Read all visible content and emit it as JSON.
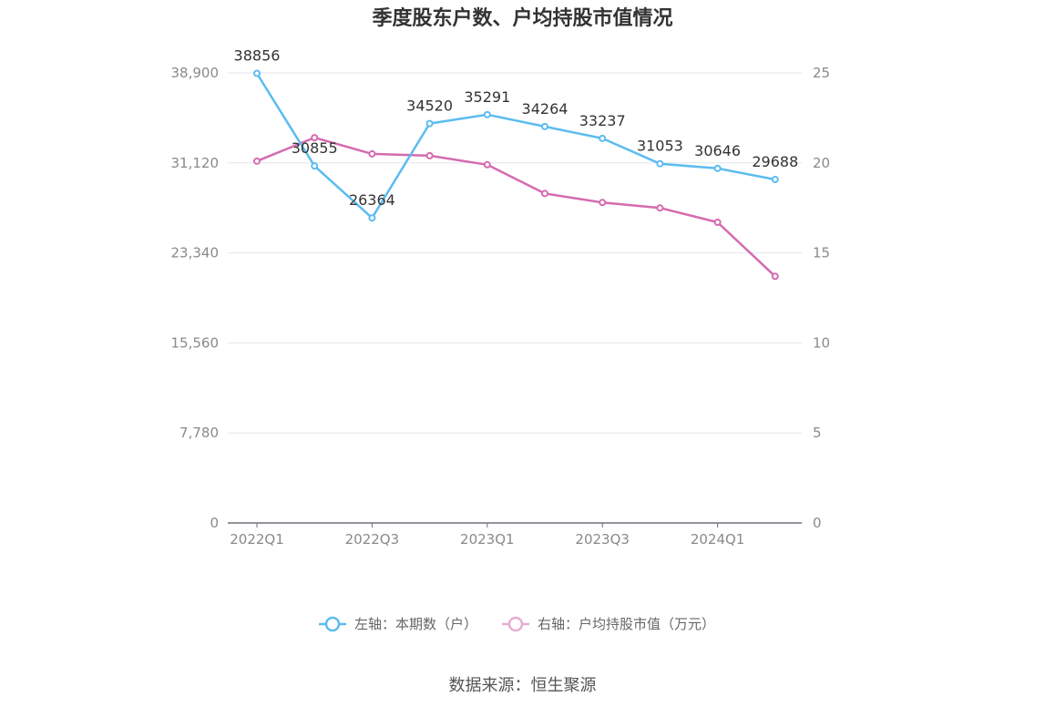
{
  "chart_data": {
    "type": "line",
    "title": "季度股东户数、户均持股市值情况",
    "categories": [
      "2022Q1",
      "2022Q2",
      "2022Q3",
      "2022Q4",
      "2023Q1",
      "2023Q2",
      "2023Q3",
      "2023Q4",
      "2024Q1",
      "2024Q2"
    ],
    "x_tick_labels": [
      "2022Q1",
      "2022Q3",
      "2023Q1",
      "2023Q3",
      "2024Q1"
    ],
    "y_left": {
      "ticks": [
        "0",
        "7,780",
        "15,560",
        "23,340",
        "31,120",
        "38,900"
      ],
      "min": 0,
      "max": 38900
    },
    "y_right": {
      "ticks": [
        "0",
        "5",
        "10",
        "15",
        "20",
        "25"
      ],
      "min": 0,
      "max": 25
    },
    "series": [
      {
        "name": "左轴：本期数（户）",
        "axis": "left",
        "color": "#5bbcf0",
        "values": [
          38856,
          30855,
          26364,
          34520,
          35291,
          34264,
          33237,
          31053,
          30646,
          29688
        ],
        "labels": [
          "38856",
          "30855",
          "26364",
          "34520",
          "35291",
          "34264",
          "33237",
          "31053",
          "30646",
          "29688"
        ]
      },
      {
        "name": "右轴：户均持股市值（万元）",
        "axis": "right",
        "color": "#d56bb0",
        "values": [
          20.1,
          21.4,
          20.5,
          20.4,
          19.9,
          18.3,
          17.8,
          17.5,
          16.7,
          13.7
        ]
      }
    ],
    "grid": true,
    "legend_position": "bottom"
  },
  "source": "数据来源：恒生聚源"
}
